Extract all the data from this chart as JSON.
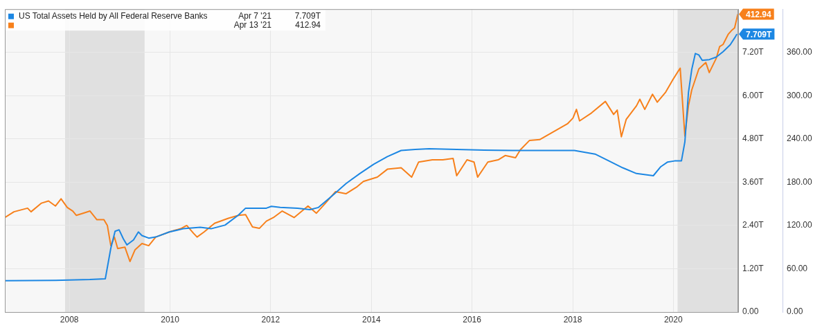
{
  "chart_data": {
    "type": "line",
    "legend": "top left",
    "grid": true,
    "marker": "none",
    "annotations": [
      "Apr 7 '21",
      "7.709T",
      "Apr 13 '21",
      "412.94"
    ],
    "xlim": [
      "2006-09-20",
      "2021-04-16"
    ],
    "xticks": [
      "2008",
      "2010",
      "2012",
      "2014",
      "2016",
      "2018",
      "2020"
    ],
    "ylim": [
      0,
      8.4
    ],
    "yticks": [
      {
        "value": 0,
        "label": "0.00"
      },
      {
        "value": 1.2,
        "label": "1.20T"
      },
      {
        "value": 2.4,
        "label": "2.40T"
      },
      {
        "value": 3.6,
        "label": "3.60T"
      },
      {
        "value": 4.8,
        "label": "4.80T"
      },
      {
        "value": 6,
        "label": "6.00T"
      },
      {
        "value": 7.2,
        "label": "7.20T"
      }
    ],
    "y2lim": [
      0,
      420
    ],
    "y2ticks": [
      {
        "value": 0,
        "label": "0.00"
      },
      {
        "value": 60,
        "label": "60.00"
      },
      {
        "value": 120,
        "label": "120.00"
      },
      {
        "value": 180,
        "label": "180.00"
      },
      {
        "value": 240,
        "label": "240.00"
      },
      {
        "value": 300,
        "label": "300.00"
      },
      {
        "value": 360,
        "label": "360.00"
      }
    ],
    "bands": [
      {
        "axis": "x",
        "from": "2007-12-01",
        "to": "2009-06-30",
        "color": "#e0e0e0"
      },
      {
        "axis": "x",
        "from": "2020-02-01",
        "to": "2021-04-16",
        "color": "#e0e0e0"
      }
    ],
    "series": [
      {
        "name": "US Total Assets Held by All Federal Reserve Banks",
        "color": "#1c87e3",
        "x": [
          "2006-09-20",
          "2007-09-22",
          "2008-05-29",
          "2008-09-18",
          "2008-10-28",
          "2008-11-28",
          "2008-12-27",
          "2009-01-27",
          "2009-02-22",
          "2009-04-11",
          "2009-05-16",
          "2009-06-11",
          "2009-07-30",
          "2009-09-19",
          "2009-12-27",
          "2010-04-07",
          "2010-08-08",
          "2010-10-26",
          "2011-02-04",
          "2011-05-13",
          "2011-07-03",
          "2011-12-01",
          "2012-01-06",
          "2012-03-10",
          "2012-07-14",
          "2012-10-13",
          "2012-12-13",
          "2013-03-21",
          "2013-06-30",
          "2013-10-09",
          "2014-01-18",
          "2014-04-27",
          "2014-08-05",
          "2014-11-15",
          "2015-02-24",
          "2015-09-12",
          "2016-03-30",
          "2016-10-18",
          "2017-08-15",
          "2018-01-13",
          "2018-06-12",
          "2018-09-21",
          "2018-12-30",
          "2019-04-09",
          "2019-08-09",
          "2019-10-02",
          "2019-11-21",
          "2020-01-10",
          "2020-02-29",
          "2020-03-25",
          "2020-04-20",
          "2020-05-14",
          "2020-06-09",
          "2020-07-04",
          "2020-07-29",
          "2020-09-18",
          "2020-11-08",
          "2020-12-27",
          "2021-02-17",
          "2021-03-21",
          "2021-04-07"
        ],
        "values": [
          0.87,
          0.88,
          0.9,
          0.92,
          1.77,
          2.24,
          2.28,
          2.03,
          1.86,
          2.0,
          2.22,
          2.12,
          2.05,
          2.08,
          2.22,
          2.31,
          2.35,
          2.31,
          2.41,
          2.69,
          2.88,
          2.88,
          2.93,
          2.9,
          2.88,
          2.84,
          2.9,
          3.22,
          3.56,
          3.84,
          4.1,
          4.31,
          4.48,
          4.51,
          4.53,
          4.51,
          4.49,
          4.48,
          4.48,
          4.48,
          4.38,
          4.19,
          4.0,
          3.84,
          3.78,
          4.03,
          4.16,
          4.19,
          4.19,
          4.72,
          6.09,
          6.73,
          7.17,
          7.13,
          6.98,
          7.0,
          7.07,
          7.22,
          7.41,
          7.6,
          7.709
        ],
        "value_labels": [
          null,
          null,
          null,
          null,
          null,
          null,
          null,
          null,
          null,
          null,
          null,
          null,
          null,
          null,
          null,
          null,
          null,
          null,
          null,
          null,
          null,
          null,
          null,
          null,
          null,
          null,
          null,
          null,
          null,
          null,
          null,
          null,
          null,
          null,
          null,
          null,
          null,
          null,
          null,
          null,
          null,
          null,
          null,
          null,
          null,
          null,
          null,
          null,
          null,
          null,
          null,
          null,
          null,
          null,
          null,
          null,
          null,
          null,
          null,
          null,
          "7.709T"
        ]
      },
      {
        "color": "#f7801b",
        "axis": "y2",
        "x": [
          "2006-09-20",
          "2006-11-25",
          "2007-03-04",
          "2007-03-29",
          "2007-06-13",
          "2007-08-03",
          "2007-09-22",
          "2007-11-02",
          "2007-12-17",
          "2008-01-26",
          "2008-02-21",
          "2008-04-10",
          "2008-05-30",
          "2008-07-19",
          "2008-09-08",
          "2008-10-03",
          "2008-10-28",
          "2008-11-23",
          "2008-12-17",
          "2009-02-07",
          "2009-03-16",
          "2009-04-21",
          "2009-06-11",
          "2009-07-30",
          "2009-09-19",
          "2009-12-27",
          "2010-03-23",
          "2010-05-02",
          "2010-06-21",
          "2010-07-16",
          "2010-09-05",
          "2010-11-20",
          "2011-02-28",
          "2011-05-13",
          "2011-07-03",
          "2011-08-22",
          "2011-10-11",
          "2011-12-01",
          "2012-01-21",
          "2012-03-25",
          "2012-06-19",
          "2012-09-28",
          "2012-11-28",
          "2013-02-02",
          "2013-04-16",
          "2013-06-30",
          "2013-09-14",
          "2013-11-04",
          "2014-02-13",
          "2014-04-27",
          "2014-08-05",
          "2014-10-20",
          "2014-12-10",
          "2015-03-19",
          "2015-06-03",
          "2015-08-17",
          "2015-09-12",
          "2015-11-26",
          "2016-01-16",
          "2016-02-11",
          "2016-04-25",
          "2016-07-09",
          "2016-08-29",
          "2016-11-12",
          "2016-12-17",
          "2017-02-22",
          "2017-05-06",
          "2017-08-15",
          "2017-11-24",
          "2018-01-03",
          "2018-01-28",
          "2018-02-20",
          "2018-05-17",
          "2018-08-26",
          "2018-10-25",
          "2018-11-20",
          "2018-12-20",
          "2019-01-24",
          "2019-04-09",
          "2019-05-03",
          "2019-06-08",
          "2019-08-03",
          "2019-09-07",
          "2019-11-07",
          "2019-12-25",
          "2020-01-30",
          "2020-02-20",
          "2020-03-25",
          "2020-04-20",
          "2020-05-14",
          "2020-07-04",
          "2020-08-24",
          "2020-09-18",
          "2020-11-08",
          "2020-12-02",
          "2020-12-27",
          "2021-02-02",
          "2021-03-02",
          "2021-03-21",
          "2021-04-13"
        ],
        "values": [
          131,
          139,
          144,
          139,
          151,
          154,
          147,
          157,
          145,
          140,
          134,
          137,
          140,
          128,
          128,
          120,
          92,
          104,
          88,
          90,
          70,
          86,
          95,
          92,
          104,
          111,
          116,
          120,
          109,
          104,
          111,
          123,
          130,
          134,
          135,
          118,
          116,
          126,
          131,
          140,
          131,
          147,
          137,
          151,
          167,
          164,
          173,
          181,
          187,
          198,
          200,
          187,
          208,
          211,
          211,
          213,
          189,
          211,
          208,
          187,
          208,
          211,
          217,
          214,
          225,
          238,
          239,
          250,
          261,
          269,
          281,
          265,
          276,
          292,
          274,
          280,
          243,
          267,
          286,
          295,
          281,
          302,
          291,
          305,
          321,
          332,
          338,
          244,
          286,
          308,
          337,
          346,
          332,
          352,
          368,
          371,
          385,
          391,
          394,
          412.94
        ],
        "value_labels": [
          null,
          null,
          null,
          null,
          null,
          null,
          null,
          null,
          null,
          null,
          null,
          null,
          null,
          null,
          null,
          null,
          null,
          null,
          null,
          null,
          null,
          null,
          null,
          null,
          null,
          null,
          null,
          null,
          null,
          null,
          null,
          null,
          null,
          null,
          null,
          null,
          null,
          null,
          null,
          null,
          null,
          null,
          null,
          null,
          null,
          null,
          null,
          null,
          null,
          null,
          null,
          null,
          null,
          null,
          null,
          null,
          null,
          null,
          null,
          null,
          null,
          null,
          null,
          null,
          null,
          null,
          null,
          null,
          null,
          null,
          null,
          null,
          null,
          null,
          null,
          null,
          null,
          null,
          null,
          null,
          null,
          null,
          null,
          null,
          null,
          null,
          null,
          null,
          null,
          null,
          null,
          null,
          null,
          null,
          null,
          null,
          null,
          null,
          null,
          "412.94"
        ]
      }
    ]
  }
}
